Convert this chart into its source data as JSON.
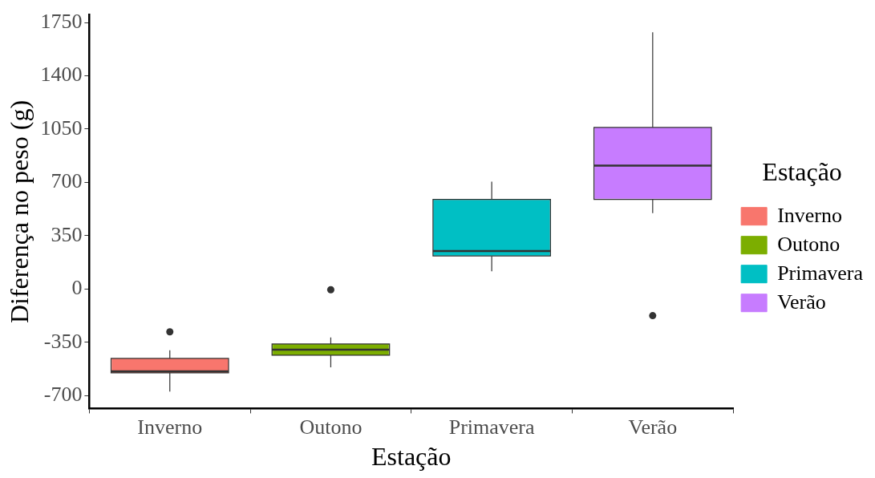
{
  "chart_data": {
    "type": "box",
    "xlabel": "Estação",
    "ylabel": "Diferença no peso (g)",
    "legend_title": "Estação",
    "legend": "right",
    "grid": false,
    "categories": [
      "Inverno",
      "Outono",
      "Primavera",
      "Verão"
    ],
    "series": [
      {
        "name": "Inverno",
        "color": "#f8766d",
        "boxes": [
          {
            "low": -673,
            "q1": -551,
            "median": -541,
            "q3": -456,
            "high": -403,
            "outliers": [
              -281
            ]
          },
          null,
          null,
          null
        ]
      },
      {
        "name": "Outono",
        "color": "#7cae00",
        "boxes": [
          null,
          {
            "low": -514,
            "q1": -435,
            "median": -398,
            "q3": -361,
            "high": -318,
            "outliers": [
              -5
            ]
          },
          null,
          null
        ]
      },
      {
        "name": "Primavera",
        "color": "#00bfc4",
        "boxes": [
          null,
          null,
          {
            "low": 117,
            "q1": 217,
            "median": 249,
            "q3": 589,
            "high": 705
          },
          null
        ]
      },
      {
        "name": "Verão",
        "color": "#c77cff",
        "boxes": [
          null,
          null,
          null,
          {
            "low": 498,
            "q1": 589,
            "median": 811,
            "q3": 1061,
            "high": 1686,
            "outliers": [
              -175
            ]
          }
        ]
      }
    ],
    "ylim": [
      -785,
      1800
    ],
    "yticks": [
      -700,
      -350,
      0,
      350,
      700,
      1050,
      1400,
      1750
    ]
  }
}
